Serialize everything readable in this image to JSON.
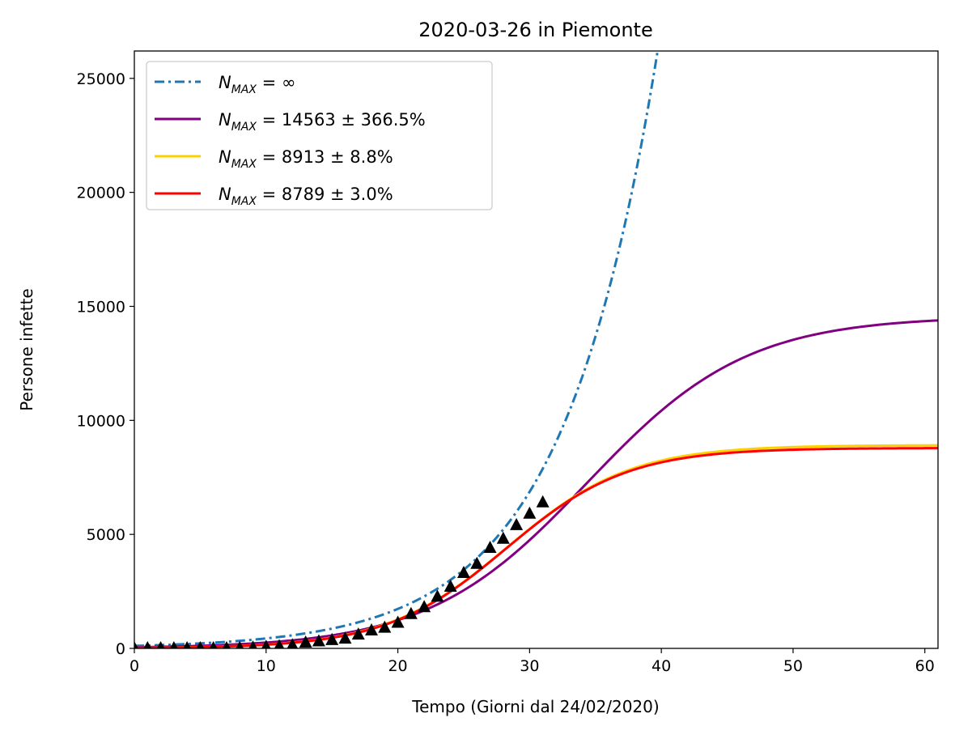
{
  "chart_data": {
    "type": "line",
    "title": "2020-03-26 in Piemonte",
    "xlabel": "Tempo (Giorni dal 24/02/2020)",
    "ylabel": "Persone infette",
    "xlim": [
      0,
      61
    ],
    "ylim": [
      0,
      26200
    ],
    "x_ticks": [
      0,
      10,
      20,
      30,
      40,
      50,
      60
    ],
    "y_ticks": [
      0,
      5000,
      10000,
      15000,
      20000,
      25000
    ],
    "grid": false,
    "legend_position": "top-left",
    "series": [
      {
        "name": "N_MAX = ∞",
        "legend": {
          "base": "N",
          "sub": "MAX",
          "rest": " = ∞"
        },
        "style": "dashdot",
        "color": "#1f77b4",
        "model": "exponential",
        "params": {
          "a": 110,
          "b": 0.1378
        }
      },
      {
        "name": "N_MAX = 14563 ± 366.5%",
        "legend": {
          "base": "N",
          "sub": "MAX",
          "rest": " = 14563 ± 366.5%"
        },
        "style": "solid",
        "color": "#800080",
        "model": "logistic",
        "params": {
          "K": 14563,
          "r": 0.165,
          "t0": 34.4
        }
      },
      {
        "name": "N_MAX = 8913 ± 8.8%",
        "legend": {
          "base": "N",
          "sub": "MAX",
          "rest": " = 8913 ± 8.8%"
        },
        "style": "solid",
        "color": "#ffd000",
        "model": "logistic",
        "params": {
          "K": 8913,
          "r": 0.215,
          "t0": 28.35
        }
      },
      {
        "name": "N_MAX = 8789 ± 3.0%",
        "legend": {
          "base": "N",
          "sub": "MAX",
          "rest": " = 8789 ± 3.0%"
        },
        "style": "solid",
        "color": "#ff0000",
        "model": "logistic",
        "params": {
          "K": 8789,
          "r": 0.218,
          "t0": 28.25
        }
      }
    ],
    "observed": {
      "marker": "triangle",
      "color": "#000000",
      "x": [
        0,
        1,
        2,
        3,
        4,
        5,
        6,
        7,
        8,
        9,
        10,
        11,
        12,
        13,
        14,
        15,
        16,
        17,
        18,
        19,
        20,
        21,
        22,
        23,
        24,
        25,
        26,
        27,
        28,
        29,
        30,
        31
      ],
      "y": [
        0,
        0,
        0,
        0,
        0,
        0,
        0,
        0,
        10,
        30,
        60,
        90,
        130,
        250,
        300,
        360,
        420,
        600,
        780,
        900,
        1120,
        1500,
        1800,
        2260,
        2700,
        3300,
        3700,
        4400,
        4800,
        5400,
        5900,
        6400
      ]
    }
  }
}
